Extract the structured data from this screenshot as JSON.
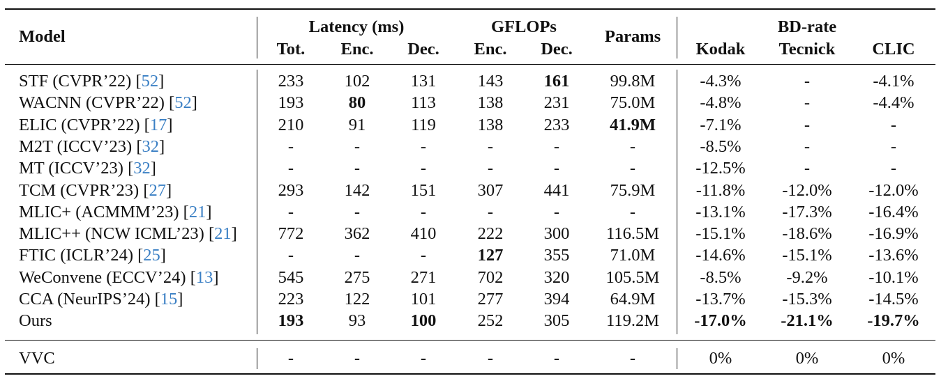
{
  "table": {
    "header": {
      "model": "Model",
      "latency_group": "Latency (ms)",
      "gflops_group": "GFLOPs",
      "params": "Params",
      "bdrate_group": "BD-rate",
      "sub": [
        "Tot.",
        "Enc.",
        "Dec.",
        "Enc.",
        "Dec.",
        "Kodak",
        "Tecnick",
        "CLIC"
      ]
    },
    "rows": [
      {
        "name": "STF (CVPR’22) [",
        "ref": "52",
        "close": "]",
        "cells": [
          "233",
          "102",
          "131",
          "143",
          "161",
          "99.8M",
          "-4.3%",
          "-",
          "-4.1%"
        ],
        "bold": [
          4
        ]
      },
      {
        "name": "WACNN (CVPR’22) [",
        "ref": "52",
        "close": "]",
        "cells": [
          "193",
          "80",
          "113",
          "138",
          "231",
          "75.0M",
          "-4.8%",
          "-",
          "-4.4%"
        ],
        "bold": [
          1
        ]
      },
      {
        "name": "ELIC (CVPR’22) [",
        "ref": "17",
        "close": "]",
        "cells": [
          "210",
          "91",
          "119",
          "138",
          "233",
          "41.9M",
          "-7.1%",
          "-",
          "-"
        ],
        "bold": [
          5
        ]
      },
      {
        "name": "M2T (ICCV’23) [",
        "ref": "32",
        "close": "]",
        "cells": [
          "-",
          "-",
          "-",
          "-",
          "-",
          "-",
          "-8.5%",
          "-",
          "-"
        ],
        "bold": []
      },
      {
        "name": "MT (ICCV’23) [",
        "ref": "32",
        "close": "]",
        "cells": [
          "-",
          "-",
          "-",
          "-",
          "-",
          "-",
          "-12.5%",
          "-",
          "-"
        ],
        "bold": []
      },
      {
        "name": "TCM (CVPR’23) [",
        "ref": "27",
        "close": "]",
        "cells": [
          "293",
          "142",
          "151",
          "307",
          "441",
          "75.9M",
          "-11.8%",
          "-12.0%",
          "-12.0%"
        ],
        "bold": []
      },
      {
        "name": "MLIC+ (ACMMM’23) [",
        "ref": "21",
        "close": "]",
        "cells": [
          "-",
          "-",
          "-",
          "-",
          "-",
          "-",
          "-13.1%",
          "-17.3%",
          "-16.4%"
        ],
        "bold": []
      },
      {
        "name": "MLIC++ (NCW ICML’23) [",
        "ref": "21",
        "close": "]",
        "cells": [
          "772",
          "362",
          "410",
          "222",
          "300",
          "116.5M",
          "-15.1%",
          "-18.6%",
          "-16.9%"
        ],
        "bold": []
      },
      {
        "name": "FTIC (ICLR’24) [",
        "ref": "25",
        "close": "]",
        "cells": [
          "-",
          "-",
          "-",
          "127",
          "355",
          "71.0M",
          "-14.6%",
          "-15.1%",
          "-13.6%"
        ],
        "bold": [
          3
        ]
      },
      {
        "name": "WeConvene (ECCV’24) [",
        "ref": "13",
        "close": "]",
        "cells": [
          "545",
          "275",
          "271",
          "702",
          "320",
          "105.5M",
          "-8.5%",
          "-9.2%",
          "-10.1%"
        ],
        "bold": []
      },
      {
        "name": "CCA (NeurIPS’24) [",
        "ref": "15",
        "close": "]",
        "cells": [
          "223",
          "122",
          "101",
          "277",
          "394",
          "64.9M",
          "-13.7%",
          "-15.3%",
          "-14.5%"
        ],
        "bold": []
      },
      {
        "name": "Ours",
        "ref": "",
        "close": "",
        "cells": [
          "193",
          "93",
          "100",
          "252",
          "305",
          "119.2M",
          "-17.0%",
          "-21.1%",
          "-19.7%"
        ],
        "bold": [
          0,
          2,
          6,
          7,
          8
        ]
      }
    ],
    "baseline": {
      "name": "VVC",
      "cells": [
        "-",
        "-",
        "-",
        "-",
        "-",
        "-",
        "0%",
        "0%",
        "0%"
      ]
    }
  }
}
